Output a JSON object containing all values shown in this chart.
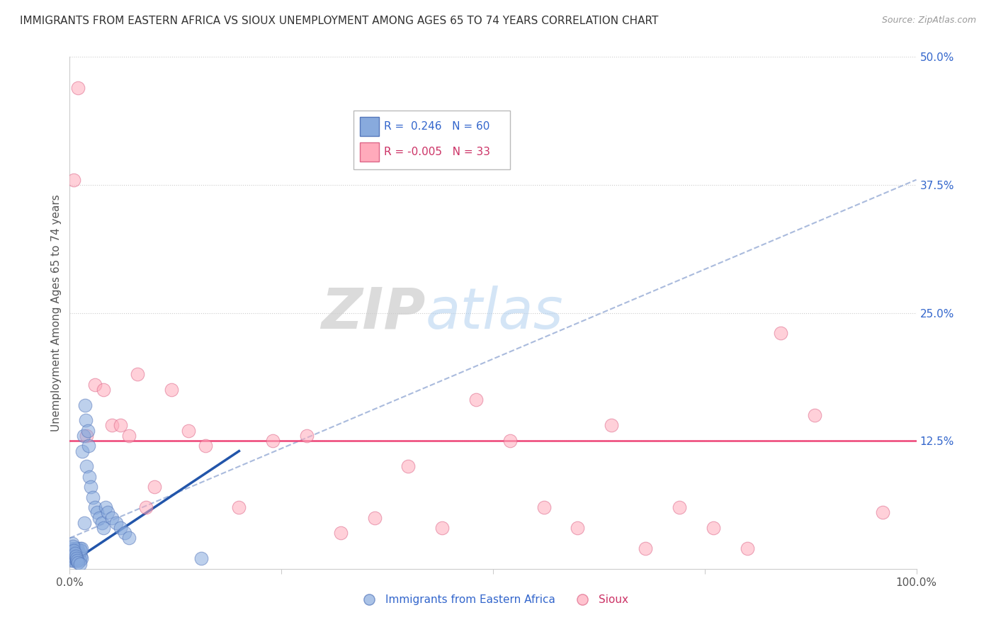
{
  "title": "IMMIGRANTS FROM EASTERN AFRICA VS SIOUX UNEMPLOYMENT AMONG AGES 65 TO 74 YEARS CORRELATION CHART",
  "source": "Source: ZipAtlas.com",
  "ylabel": "Unemployment Among Ages 65 to 74 years",
  "xlim": [
    0,
    1.0
  ],
  "ylim": [
    0,
    0.5
  ],
  "blue_color": "#88aadd",
  "blue_edge_color": "#5577bb",
  "pink_color": "#ffaabb",
  "pink_edge_color": "#dd6688",
  "blue_line_color": "#2255aa",
  "pink_line_color": "#ee4477",
  "dash_line_color": "#aabbdd",
  "grid_color": "#cccccc",
  "blue_r": 0.246,
  "blue_n": 60,
  "pink_r": -0.005,
  "pink_n": 33,
  "blue_scatter_x": [
    0.001,
    0.002,
    0.002,
    0.003,
    0.003,
    0.004,
    0.004,
    0.005,
    0.005,
    0.006,
    0.006,
    0.007,
    0.007,
    0.008,
    0.008,
    0.009,
    0.009,
    0.01,
    0.01,
    0.011,
    0.011,
    0.012,
    0.012,
    0.013,
    0.013,
    0.014,
    0.014,
    0.015,
    0.016,
    0.017,
    0.018,
    0.019,
    0.02,
    0.021,
    0.022,
    0.023,
    0.025,
    0.027,
    0.03,
    0.032,
    0.035,
    0.038,
    0.04,
    0.042,
    0.045,
    0.05,
    0.055,
    0.06,
    0.065,
    0.07,
    0.003,
    0.004,
    0.005,
    0.006,
    0.007,
    0.008,
    0.009,
    0.01,
    0.012,
    0.155
  ],
  "blue_scatter_y": [
    0.01,
    0.008,
    0.015,
    0.012,
    0.02,
    0.01,
    0.018,
    0.008,
    0.015,
    0.01,
    0.02,
    0.012,
    0.018,
    0.008,
    0.015,
    0.01,
    0.02,
    0.012,
    0.018,
    0.01,
    0.015,
    0.008,
    0.02,
    0.012,
    0.018,
    0.01,
    0.02,
    0.115,
    0.13,
    0.045,
    0.16,
    0.145,
    0.1,
    0.135,
    0.12,
    0.09,
    0.08,
    0.07,
    0.06,
    0.055,
    0.05,
    0.045,
    0.04,
    0.06,
    0.055,
    0.05,
    0.045,
    0.04,
    0.035,
    0.03,
    0.025,
    0.022,
    0.018,
    0.015,
    0.012,
    0.01,
    0.008,
    0.006,
    0.005,
    0.01
  ],
  "pink_scatter_x": [
    0.005,
    0.01,
    0.02,
    0.03,
    0.04,
    0.05,
    0.06,
    0.07,
    0.08,
    0.09,
    0.1,
    0.12,
    0.14,
    0.16,
    0.2,
    0.24,
    0.28,
    0.32,
    0.36,
    0.4,
    0.44,
    0.48,
    0.52,
    0.56,
    0.6,
    0.64,
    0.68,
    0.72,
    0.76,
    0.8,
    0.84,
    0.88,
    0.96
  ],
  "pink_scatter_y": [
    0.38,
    0.47,
    0.13,
    0.18,
    0.175,
    0.14,
    0.14,
    0.13,
    0.19,
    0.06,
    0.08,
    0.175,
    0.135,
    0.12,
    0.06,
    0.125,
    0.13,
    0.035,
    0.05,
    0.1,
    0.04,
    0.165,
    0.125,
    0.06,
    0.04,
    0.14,
    0.02,
    0.06,
    0.04,
    0.02,
    0.23,
    0.15,
    0.055
  ],
  "pink_line_y": 0.125,
  "blue_line_x0": 0.0,
  "blue_line_y0": 0.005,
  "blue_line_x1": 0.2,
  "blue_line_y1": 0.115,
  "dash_line_x0": 0.0,
  "dash_line_y0": 0.03,
  "dash_line_x1": 1.0,
  "dash_line_y1": 0.38
}
